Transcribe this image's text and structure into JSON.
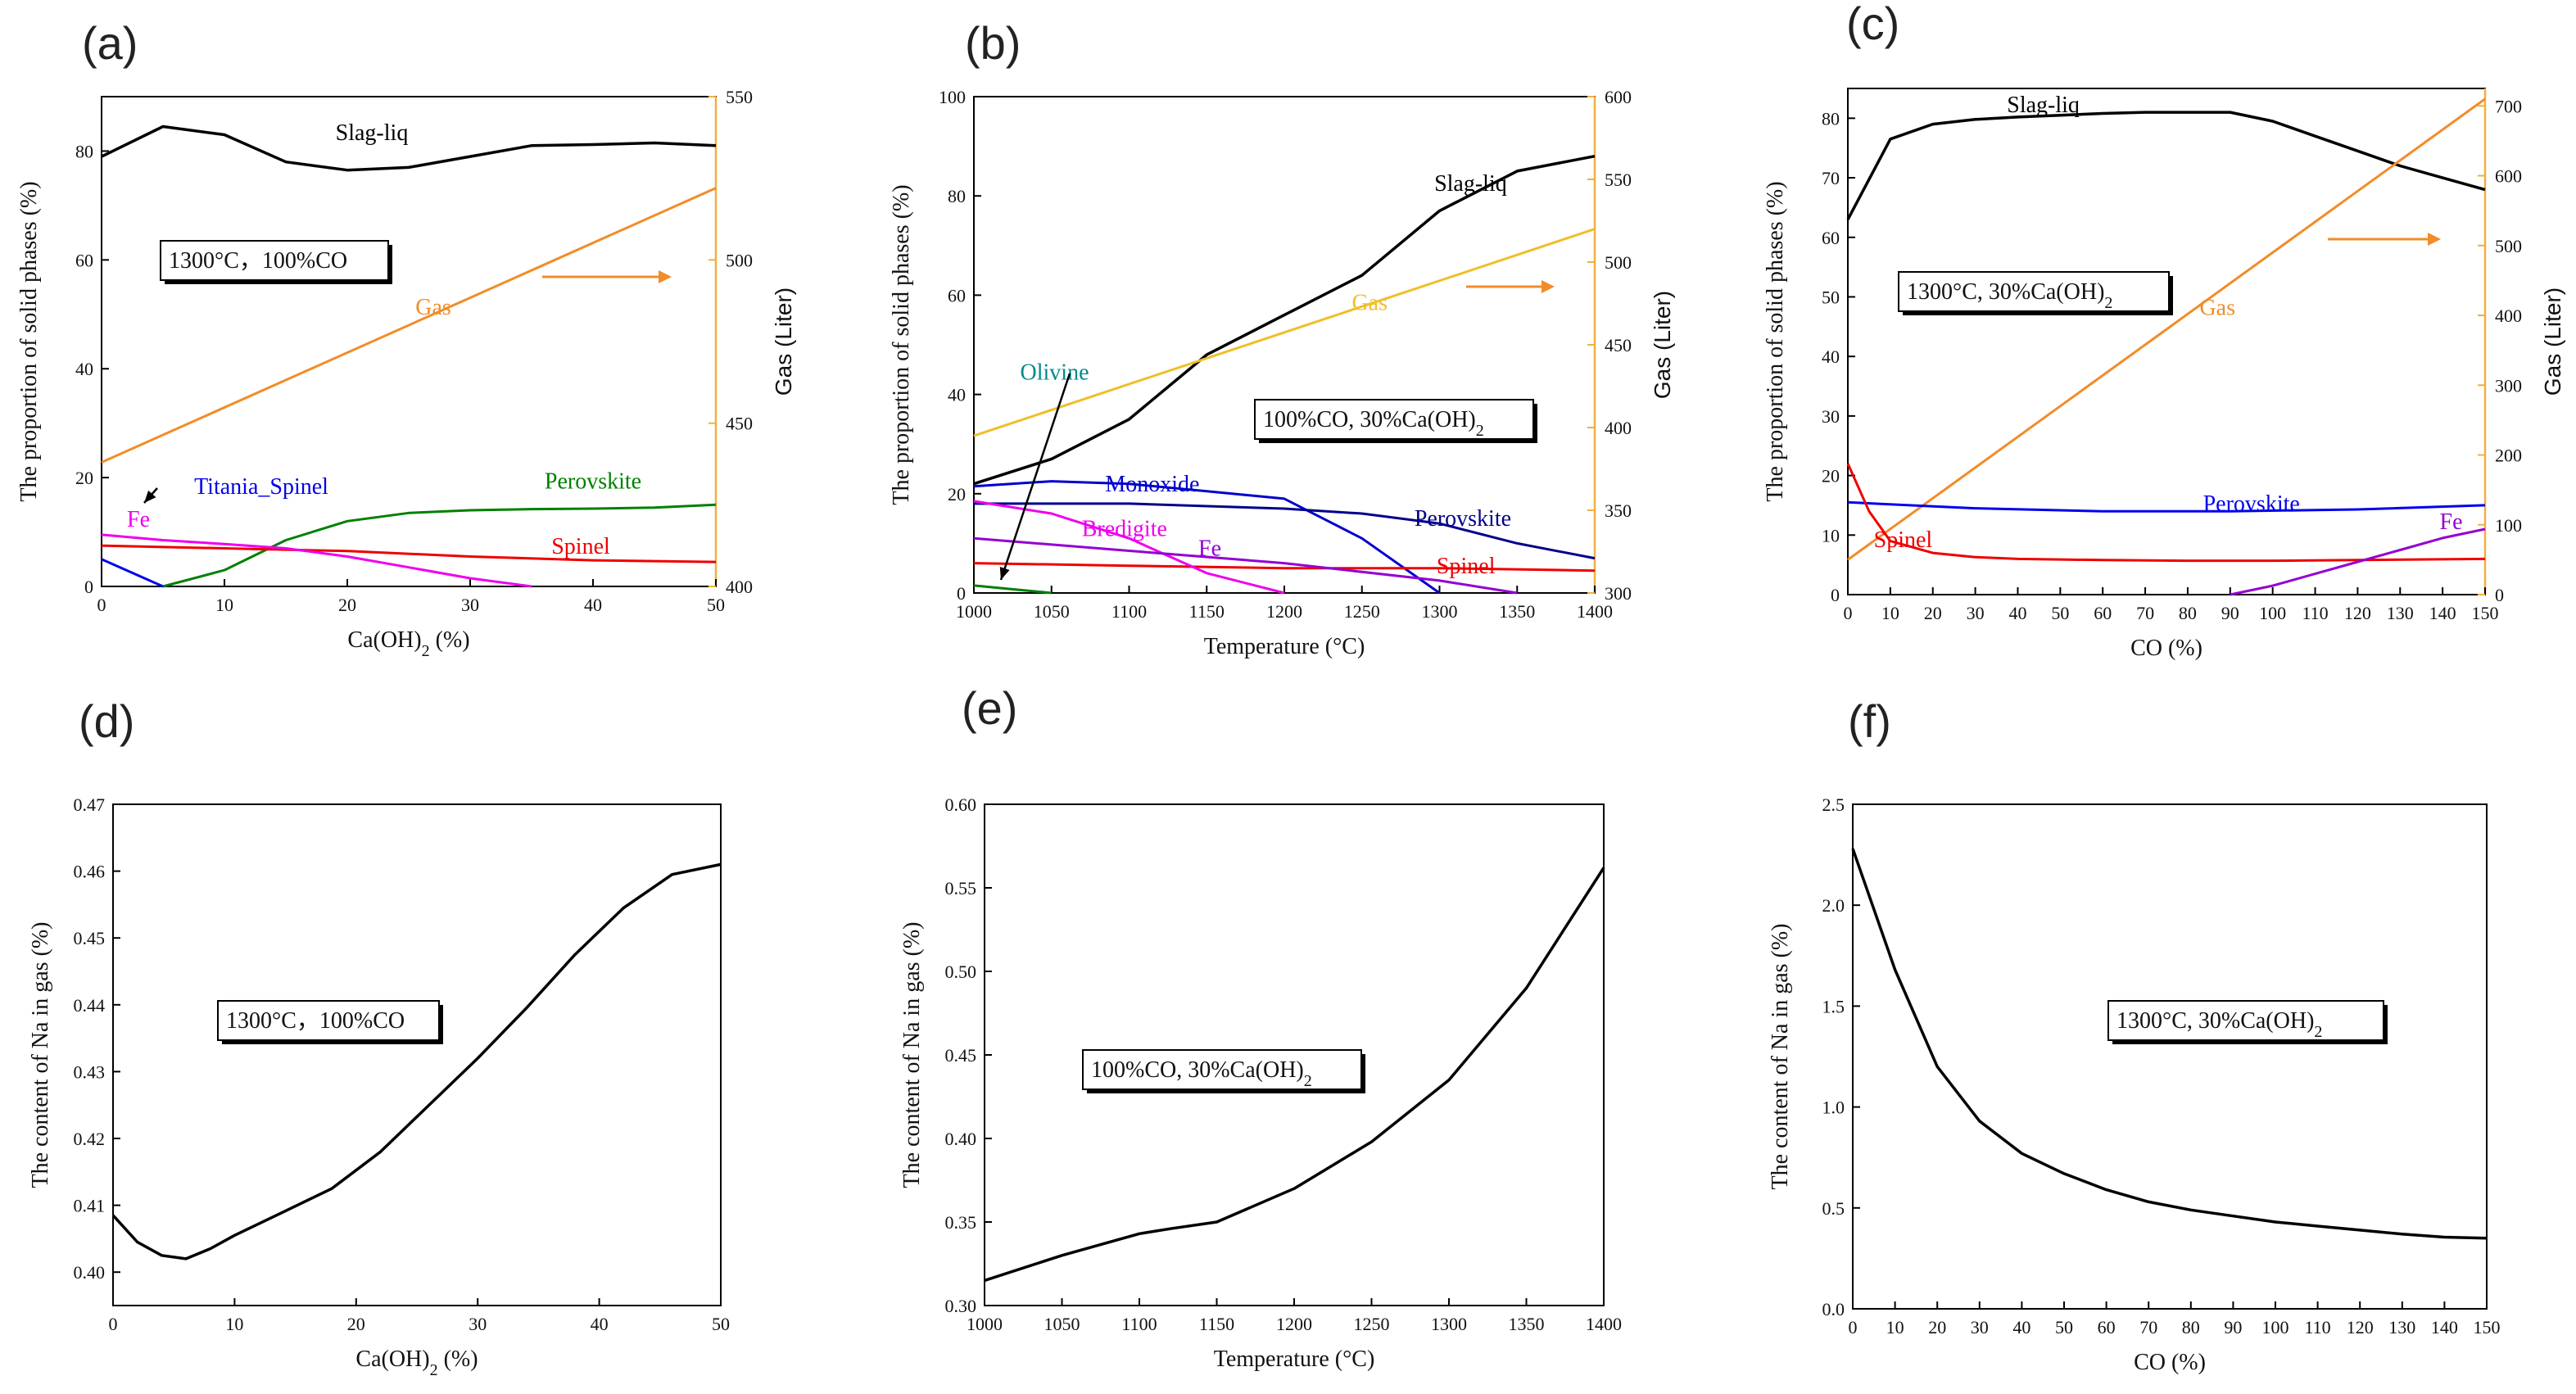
{
  "chart_data": [
    {
      "type": "line",
      "panel_label": "(a)",
      "xlabel": "Ca(OH)",
      "xlabel_sub": "2",
      "xlabel_tail": " (%)",
      "ylabel": "The proportion of solid phases (%)",
      "y2label": "Gas (Liter)",
      "xlim": [
        0,
        50
      ],
      "ylim": [
        0,
        90
      ],
      "y2lim": [
        400,
        550
      ],
      "xticks": [
        0,
        10,
        20,
        30,
        40,
        50
      ],
      "yticks": [
        0,
        20,
        40,
        60,
        80
      ],
      "y2ticks": [
        400,
        450,
        500,
        550
      ],
      "condition": {
        "text": "1300°C，100%CO",
        "sub": "",
        "tail": ""
      },
      "series": [
        {
          "name": "Slag-liq",
          "color": "#000000",
          "axis": "left",
          "x": [
            0,
            5,
            10,
            15,
            20,
            25,
            30,
            35,
            40,
            45,
            50
          ],
          "y": [
            79,
            84.5,
            83,
            78,
            76.5,
            77,
            79,
            81,
            81.2,
            81.5,
            81
          ]
        },
        {
          "name": "Gas",
          "color": "#F28C28",
          "axis": "right",
          "x": [
            0,
            50
          ],
          "y": [
            438,
            522
          ]
        },
        {
          "name": "Perovskite",
          "color": "#008000",
          "axis": "left",
          "x": [
            5,
            10,
            15,
            20,
            25,
            30,
            35,
            40,
            45,
            50
          ],
          "y": [
            0,
            3,
            8.5,
            12,
            13.5,
            14,
            14.2,
            14.3,
            14.5,
            15
          ]
        },
        {
          "name": "Spinel",
          "color": "#EE0000",
          "axis": "left",
          "x": [
            0,
            10,
            20,
            30,
            40,
            50
          ],
          "y": [
            7.5,
            7,
            6.5,
            5.5,
            4.8,
            4.5
          ]
        },
        {
          "name": "Fe",
          "color": "#EE00EE",
          "axis": "left",
          "x": [
            0,
            5,
            10,
            15,
            20,
            25,
            30,
            35
          ],
          "y": [
            9.5,
            8.5,
            7.8,
            7,
            5.5,
            3.5,
            1.5,
            0
          ]
        },
        {
          "name": "Titania_Spinel",
          "color": "#0000EE",
          "axis": "left",
          "x": [
            0,
            5
          ],
          "y": [
            5,
            0
          ]
        }
      ],
      "labels": [
        {
          "text": "Slag-liq",
          "color": "#000000",
          "x": 22,
          "y": 82
        },
        {
          "text": "Gas",
          "color": "#F28C28",
          "x": 27,
          "y": 50
        },
        {
          "text": "Perovskite",
          "color": "#008000",
          "x": 40,
          "y": 18
        },
        {
          "text": "Spinel",
          "color": "#EE0000",
          "x": 39,
          "y": 6
        },
        {
          "text": "Fe",
          "color": "#EE00EE",
          "x": 3,
          "y": 11
        },
        {
          "text": "Titania_Spinel",
          "color": "#0000EE",
          "x": 13,
          "y": 17
        }
      ]
    },
    {
      "type": "line",
      "panel_label": "(b)",
      "xlabel": "Temperature (°C)",
      "xlabel_sub": "",
      "xlabel_tail": "",
      "ylabel": "The proportion of solid phases (%)",
      "y2label": "Gas (Liter)",
      "xlim": [
        1000,
        1400
      ],
      "ylim": [
        0,
        100
      ],
      "y2lim": [
        300,
        600
      ],
      "xticks": [
        1000,
        1050,
        1100,
        1150,
        1200,
        1250,
        1300,
        1350,
        1400
      ],
      "yticks": [
        0,
        20,
        40,
        60,
        80,
        100
      ],
      "y2ticks": [
        300,
        350,
        400,
        450,
        500,
        550,
        600
      ],
      "condition": {
        "text": "100%CO, 30%Ca(OH)",
        "sub": "2",
        "tail": ""
      },
      "series": [
        {
          "name": "Slag-liq",
          "color": "#000000",
          "axis": "left",
          "x": [
            1000,
            1050,
            1100,
            1150,
            1200,
            1250,
            1300,
            1350,
            1400
          ],
          "y": [
            22,
            27,
            35,
            48,
            56,
            64,
            77,
            85,
            88
          ]
        },
        {
          "name": "Gas",
          "color": "#F0BE28",
          "axis": "right",
          "x": [
            1000,
            1400
          ],
          "y": [
            395,
            520
          ]
        },
        {
          "name": "Monoxide",
          "color": "#0000CC",
          "axis": "left",
          "x": [
            1000,
            1050,
            1100,
            1150,
            1200,
            1250,
            1300
          ],
          "y": [
            21.5,
            22.5,
            22,
            20.5,
            19,
            11,
            0
          ]
        },
        {
          "name": "Perovskite",
          "color": "#00008B",
          "axis": "left",
          "x": [
            1000,
            1100,
            1200,
            1250,
            1300,
            1350,
            1400
          ],
          "y": [
            18,
            18,
            17,
            16,
            14,
            10,
            7
          ]
        },
        {
          "name": "Spinel",
          "color": "#EE0000",
          "axis": "left",
          "x": [
            1000,
            1100,
            1200,
            1300,
            1400
          ],
          "y": [
            6,
            5.5,
            5,
            5,
            4.5
          ]
        },
        {
          "name": "Bredigite",
          "color": "#EE00EE",
          "axis": "left",
          "x": [
            1000,
            1050,
            1100,
            1150,
            1200
          ],
          "y": [
            18.5,
            16,
            11,
            4,
            0
          ]
        },
        {
          "name": "Fe",
          "color": "#9400D3",
          "axis": "left",
          "x": [
            1000,
            1100,
            1200,
            1300,
            1350
          ],
          "y": [
            11,
            8.5,
            6,
            2.5,
            0
          ]
        },
        {
          "name": "Olivine",
          "color": "#008000",
          "axis": "left",
          "x": [
            1000,
            1050
          ],
          "y": [
            1.5,
            0
          ]
        }
      ],
      "labels": [
        {
          "text": "Slag-liq",
          "color": "#000000",
          "x": 1320,
          "y": 81
        },
        {
          "text": "Gas",
          "color": "#F0BE28",
          "x": 1255,
          "y": 57
        },
        {
          "text": "Olivine",
          "color": "#008B8B",
          "x": 1052,
          "y": 43
        },
        {
          "text": "Monoxide",
          "color": "#0000CC",
          "x": 1115,
          "y": 20.5
        },
        {
          "text": "Perovskite",
          "color": "#00008B",
          "x": 1315,
          "y": 13.5
        },
        {
          "text": "Bredigite",
          "color": "#EE00EE",
          "x": 1097,
          "y": 11.5
        },
        {
          "text": "Fe",
          "color": "#9400D3",
          "x": 1152,
          "y": 7.5
        },
        {
          "text": "Spinel",
          "color": "#EE0000",
          "x": 1317,
          "y": 4
        }
      ]
    },
    {
      "type": "line",
      "panel_label": "(c)",
      "xlabel": "CO (%)",
      "xlabel_sub": "",
      "xlabel_tail": "",
      "ylabel": "The proportion of solid phases (%)",
      "y2label": "Gas (Liter)",
      "xlim": [
        0,
        150
      ],
      "ylim": [
        0,
        85
      ],
      "y2lim": [
        0,
        725
      ],
      "xticks": [
        0,
        10,
        20,
        30,
        40,
        50,
        60,
        70,
        80,
        90,
        100,
        110,
        120,
        130,
        140,
        150
      ],
      "yticks": [
        0,
        10,
        20,
        30,
        40,
        50,
        60,
        70,
        80
      ],
      "y2ticks": [
        0,
        100,
        200,
        300,
        400,
        500,
        600,
        700
      ],
      "condition": {
        "text": "1300°C, 30%Ca(OH)",
        "sub": "2",
        "tail": ""
      },
      "series": [
        {
          "name": "Slag-liq",
          "color": "#000000",
          "axis": "left",
          "x": [
            0,
            10,
            20,
            30,
            40,
            50,
            60,
            70,
            80,
            90,
            100,
            110,
            120,
            130,
            140,
            150
          ],
          "y": [
            63,
            76.5,
            79,
            79.8,
            80.2,
            80.5,
            80.8,
            81,
            81,
            81,
            79.5,
            77,
            74.5,
            72,
            70,
            68
          ]
        },
        {
          "name": "Gas",
          "color": "#F28C28",
          "axis": "right",
          "x": [
            0,
            150
          ],
          "y": [
            50,
            710
          ]
        },
        {
          "name": "Perovskite",
          "color": "#0000EE",
          "axis": "left",
          "x": [
            0,
            30,
            60,
            90,
            120,
            150
          ],
          "y": [
            15.5,
            14.5,
            14,
            14,
            14.3,
            15
          ]
        },
        {
          "name": "Spinel",
          "color": "#EE0000",
          "axis": "left",
          "x": [
            0,
            5,
            10,
            20,
            30,
            40,
            60,
            80,
            100,
            120,
            150
          ],
          "y": [
            22,
            14,
            9,
            7,
            6.3,
            6,
            5.8,
            5.7,
            5.7,
            5.8,
            6
          ]
        },
        {
          "name": "Fe",
          "color": "#9400D3",
          "axis": "left",
          "x": [
            90,
            100,
            110,
            120,
            130,
            140,
            150
          ],
          "y": [
            0,
            1.5,
            3.5,
            5.5,
            7.5,
            9.5,
            11
          ]
        }
      ],
      "labels": [
        {
          "text": "Slag-liq",
          "color": "#000000",
          "x": 46,
          "y": 81
        },
        {
          "text": "Gas",
          "color": "#F28C28",
          "x": 87,
          "y": 47
        },
        {
          "text": "Perovskite",
          "color": "#0000EE",
          "x": 95,
          "y": 14
        },
        {
          "text": "Spinel",
          "color": "#EE0000",
          "x": 13,
          "y": 8
        },
        {
          "text": "Fe",
          "color": "#9400D3",
          "x": 142,
          "y": 11
        }
      ]
    },
    {
      "type": "line",
      "panel_label": "(d)",
      "xlabel": "Ca(OH)",
      "xlabel_sub": "2",
      "xlabel_tail": " (%)",
      "ylabel": "The content of Na in gas (%)",
      "y2label": "",
      "xlim": [
        0,
        50
      ],
      "ylim": [
        0.395,
        0.47
      ],
      "y2lim": null,
      "xticks": [
        0,
        10,
        20,
        30,
        40,
        50
      ],
      "yticks": [
        0.4,
        0.41,
        0.42,
        0.43,
        0.44,
        0.45,
        0.46,
        0.47
      ],
      "ytick_decimals": 2,
      "condition": {
        "text": "1300°C，100%CO",
        "sub": "",
        "tail": ""
      },
      "series": [
        {
          "name": "Na",
          "color": "#000000",
          "axis": "left",
          "x": [
            0,
            2,
            4,
            6,
            8,
            10,
            14,
            18,
            22,
            26,
            30,
            34,
            38,
            42,
            46,
            50
          ],
          "y": [
            0.4085,
            0.4045,
            0.4025,
            0.402,
            0.4035,
            0.4055,
            0.409,
            0.4125,
            0.418,
            0.425,
            0.432,
            0.4395,
            0.4475,
            0.4545,
            0.4595,
            0.461
          ]
        }
      ],
      "labels": []
    },
    {
      "type": "line",
      "panel_label": "(e)",
      "xlabel": "Temperature (°C)",
      "xlabel_sub": "",
      "xlabel_tail": "",
      "ylabel": "The content of Na in gas (%)",
      "y2label": "",
      "xlim": [
        1000,
        1400
      ],
      "ylim": [
        0.3,
        0.6
      ],
      "y2lim": null,
      "xticks": [
        1000,
        1050,
        1100,
        1150,
        1200,
        1250,
        1300,
        1350,
        1400
      ],
      "yticks": [
        0.3,
        0.35,
        0.4,
        0.45,
        0.5,
        0.55,
        0.6
      ],
      "ytick_decimals": 2,
      "condition": {
        "text": "100%CO, 30%Ca(OH)",
        "sub": "2",
        "tail": ""
      },
      "series": [
        {
          "name": "Na",
          "color": "#000000",
          "axis": "left",
          "x": [
            1000,
            1050,
            1100,
            1120,
            1150,
            1200,
            1250,
            1300,
            1350,
            1400
          ],
          "y": [
            0.315,
            0.33,
            0.343,
            0.346,
            0.35,
            0.37,
            0.398,
            0.435,
            0.49,
            0.562
          ]
        }
      ],
      "labels": []
    },
    {
      "type": "line",
      "panel_label": "(f)",
      "xlabel": "CO (%)",
      "xlabel_sub": "",
      "xlabel_tail": "",
      "ylabel": "The content of Na in gas (%)",
      "y2label": "",
      "xlim": [
        0,
        150
      ],
      "ylim": [
        0,
        2.5
      ],
      "y2lim": null,
      "xticks": [
        0,
        10,
        20,
        30,
        40,
        50,
        60,
        70,
        80,
        90,
        100,
        110,
        120,
        130,
        140,
        150
      ],
      "yticks": [
        0.0,
        0.5,
        1.0,
        1.5,
        2.0,
        2.5
      ],
      "ytick_decimals": 1,
      "condition": {
        "text": "1300°C, 30%Ca(OH)",
        "sub": "2",
        "tail": ""
      },
      "series": [
        {
          "name": "Na",
          "color": "#000000",
          "axis": "left",
          "x": [
            0,
            10,
            20,
            30,
            40,
            50,
            60,
            70,
            80,
            90,
            100,
            110,
            120,
            130,
            140,
            150
          ],
          "y": [
            2.28,
            1.68,
            1.2,
            0.93,
            0.77,
            0.67,
            0.59,
            0.53,
            0.49,
            0.46,
            0.43,
            0.41,
            0.39,
            0.37,
            0.355,
            0.35
          ]
        }
      ],
      "labels": []
    }
  ]
}
